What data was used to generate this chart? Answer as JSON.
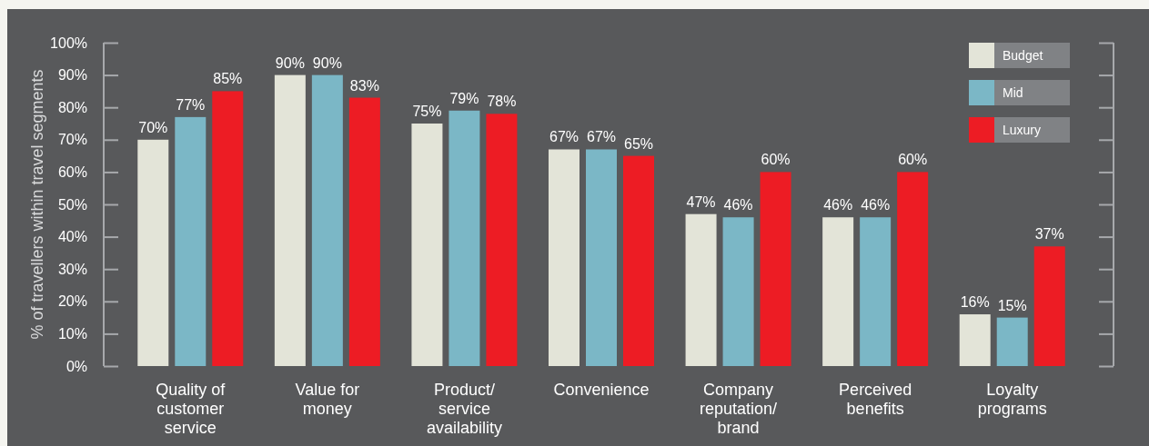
{
  "chart_data": {
    "type": "bar",
    "ylabel": "% of travellers within travel segments",
    "categories": [
      "Quality of\ncustomer\nservice",
      "Value for\nmoney",
      "Product/\nservice\navailability",
      "Convenience",
      "Company\nreputation/\nbrand",
      "Perceived\nbenefits",
      "Loyalty\nprograms"
    ],
    "series": [
      {
        "name": "Budget",
        "color": "#e3e4d8",
        "values": [
          70,
          90,
          75,
          67,
          47,
          46,
          16
        ],
        "value_labels": [
          "70%",
          "90%",
          "75%",
          "67%",
          "47%",
          "46%",
          "16%"
        ]
      },
      {
        "name": "Mid",
        "color": "#7bb7c6",
        "values": [
          77,
          90,
          79,
          67,
          46,
          46,
          15
        ],
        "value_labels": [
          "77%",
          "90%",
          "79%",
          "67%",
          "46%",
          "46%",
          "15%"
        ]
      },
      {
        "name": "Luxury",
        "color": "#ed1c24",
        "values": [
          85,
          83,
          78,
          65,
          60,
          60,
          37
        ],
        "value_labels": [
          "85%",
          "83%",
          "78%",
          "65%",
          "60%",
          "60%",
          "37%"
        ]
      }
    ],
    "ylim": [
      0,
      100
    ],
    "yticks": [
      {
        "value": 0,
        "label": "0%"
      },
      {
        "value": 10,
        "label": "10%"
      },
      {
        "value": 20,
        "label": "20%"
      },
      {
        "value": 30,
        "label": "30%"
      },
      {
        "value": 40,
        "label": "40%"
      },
      {
        "value": 50,
        "label": "50%"
      },
      {
        "value": 60,
        "label": "60%"
      },
      {
        "value": 70,
        "label": "70%"
      },
      {
        "value": 80,
        "label": "80%"
      },
      {
        "value": 90,
        "label": "90%"
      },
      {
        "value": 100,
        "label": "100%"
      }
    ],
    "legend": "top right"
  }
}
